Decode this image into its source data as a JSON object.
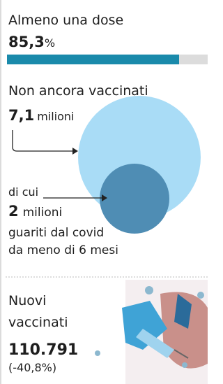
{
  "sections": [
    {
      "title": "Almeno una dose",
      "value": "85,3",
      "unit": "%"
    },
    {
      "title": "Non ancora vaccinati",
      "value": "7,1",
      "unit": "milioni",
      "sub_label": "di cui",
      "sub_value": "2",
      "sub_unit": "milioni",
      "sub_note_1": "guariti dal covid",
      "sub_note_2": "da meno di 6 mesi"
    },
    {
      "title_1": "Nuovi",
      "title_2": "vaccinati",
      "value": "110.791",
      "change": "(-40,8%)"
    }
  ]
}
